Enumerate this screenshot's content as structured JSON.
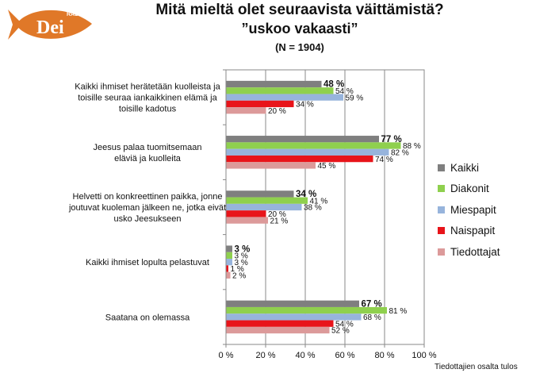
{
  "logo": {
    "small_text": "RADIO",
    "big_text": "Dei"
  },
  "title": "Mitä mieltä olet seuraavista väittämistä?",
  "subtitle": "”uskoo vakaasti”",
  "sample_size": "(N = 1904)",
  "footnote": "Tiedottajien osalta tulos",
  "colors": {
    "Kaikki": "#7f7f7f",
    "Diakonit": "#8fd04e",
    "Miespapit": "#97b4dc",
    "Naispapit": "#e8141a",
    "Tiedottajat": "#dc9a9a"
  },
  "chart_data": {
    "type": "bar",
    "orientation": "horizontal",
    "categories": [
      [
        "Kaikki ihmiset herätetään kuolleista ja",
        "toisille seuraa iankaikkinen elämä ja",
        "toisille kadotus"
      ],
      [
        "Jeesus palaa tuomitsemaan",
        "eläviä ja kuolleita"
      ],
      [
        "Helvetti on konkreettinen paikka, jonne",
        "joutuvat kuoleman jälkeen ne, jotka eivät",
        "usko Jeesukseen"
      ],
      [
        "Kaikki ihmiset lopulta pelastuvat"
      ],
      [
        "Saatana on olemassa"
      ]
    ],
    "series": [
      {
        "name": "Kaikki",
        "values": [
          48,
          77,
          34,
          3,
          67
        ]
      },
      {
        "name": "Diakonit",
        "values": [
          54,
          88,
          41,
          3,
          81
        ]
      },
      {
        "name": "Miespapit",
        "values": [
          59,
          82,
          38,
          3,
          68
        ]
      },
      {
        "name": "Naispapit",
        "values": [
          34,
          74,
          20,
          1,
          54
        ]
      },
      {
        "name": "Tiedottajat",
        "values": [
          20,
          45,
          21,
          2,
          52
        ]
      }
    ],
    "value_suffix": " %",
    "xlim": [
      0,
      100
    ],
    "xticks": [
      "0 %",
      "20 %",
      "40 %",
      "60 %",
      "80 %",
      "100 %"
    ],
    "legend_position": "right",
    "grid": true
  }
}
